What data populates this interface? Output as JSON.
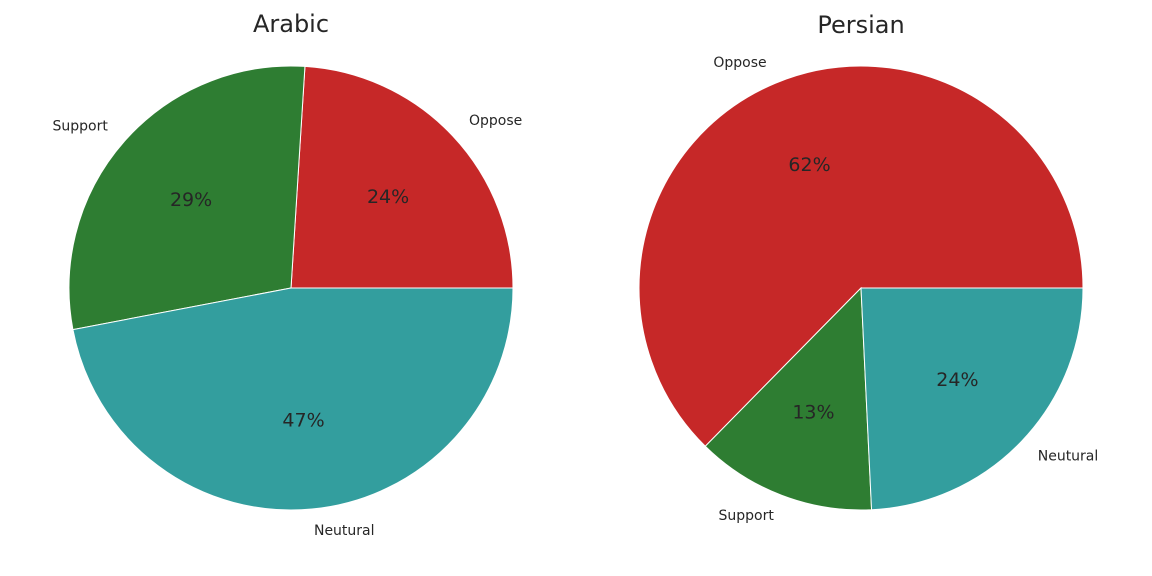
{
  "chart_data": [
    {
      "type": "pie",
      "title": "Arabic",
      "slices": [
        {
          "label": "Oppose",
          "value": 24,
          "pct_label": "24%",
          "color": "#c62828"
        },
        {
          "label": "Support",
          "value": 29,
          "pct_label": "29%",
          "color": "#2e7d32"
        },
        {
          "label": "Neutural",
          "value": 47,
          "pct_label": "47%",
          "color": "#339e9e"
        }
      ],
      "start_angle_deg": 0,
      "direction": "counterclockwise"
    },
    {
      "type": "pie",
      "title": "Persian",
      "slices": [
        {
          "label": "Oppose",
          "value": 62,
          "pct_label": "62%",
          "color": "#c62828"
        },
        {
          "label": "Support",
          "value": 13,
          "pct_label": "13%",
          "color": "#2e7d32"
        },
        {
          "label": "Neutural",
          "value": 24,
          "pct_label": "24%",
          "color": "#339e9e"
        }
      ],
      "start_angle_deg": 0,
      "direction": "counterclockwise"
    }
  ]
}
